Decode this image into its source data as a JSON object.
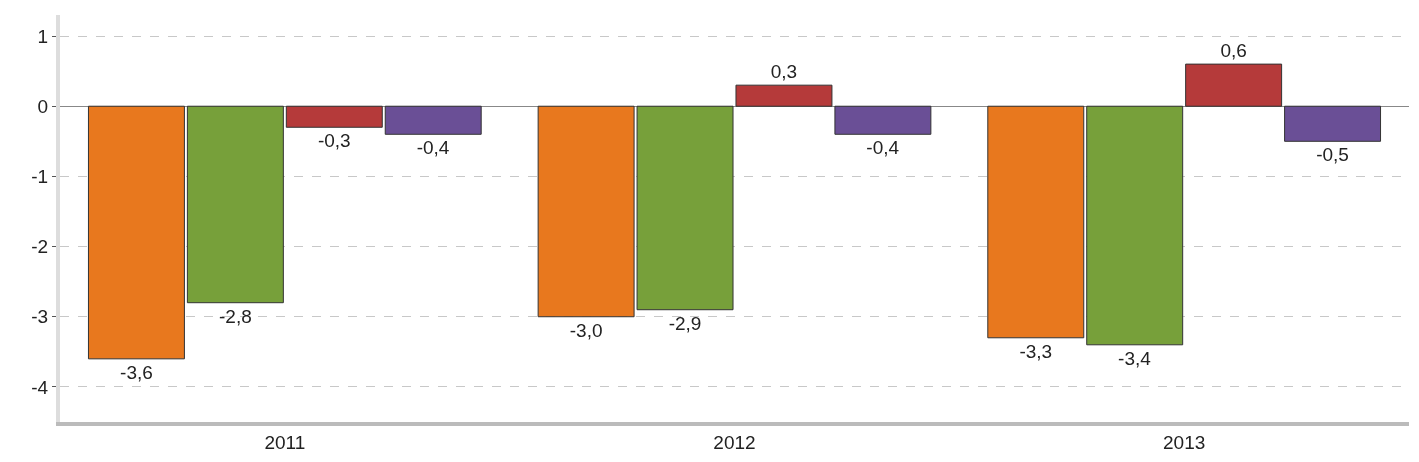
{
  "chart_data": {
    "type": "bar",
    "categories": [
      "2011",
      "2012",
      "2013"
    ],
    "series": [
      {
        "color": "#e8781e",
        "values": [
          -3.6,
          -3.0,
          -3.3
        ],
        "value_labels": [
          "-3,6",
          "-3,0",
          "-3,3"
        ]
      },
      {
        "color": "#77a03a",
        "values": [
          -2.8,
          -2.9,
          -3.4
        ],
        "value_labels": [
          "-2,8",
          "-2,9",
          "-3,4"
        ]
      },
      {
        "color": "#b53a3a",
        "values": [
          -0.3,
          0.3,
          0.6
        ],
        "value_labels": [
          "-0,3",
          "0,3",
          "0,6"
        ]
      },
      {
        "color": "#6a4f96",
        "values": [
          -0.4,
          -0.4,
          -0.5
        ],
        "value_labels": [
          "-0,4",
          "-0,4",
          "-0,5"
        ]
      }
    ],
    "ylim": [
      -4.5,
      1.3
    ],
    "yticks": [
      -4,
      -3,
      -2,
      -1,
      0,
      1
    ],
    "grid": "y",
    "legend": false
  }
}
